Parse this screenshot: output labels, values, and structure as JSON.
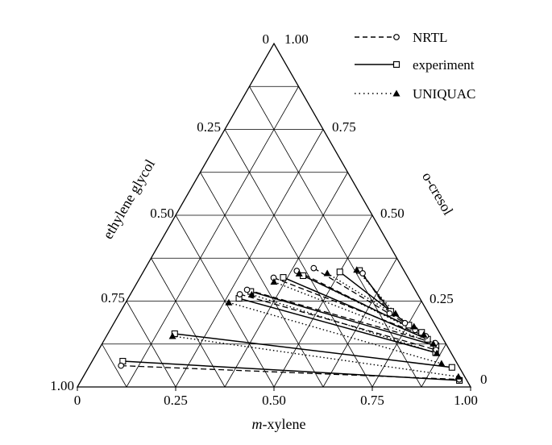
{
  "chart_data": {
    "type": "scatter",
    "subtype": "ternary",
    "axes": {
      "bottom": {
        "label_prefix": "m",
        "label_suffix": "-xylene",
        "ticks": [
          "0",
          "0.25",
          "0.50",
          "0.75",
          "1.00"
        ]
      },
      "left": {
        "label": "ethylene glycol",
        "ticks": [
          "1.00",
          "0.75",
          "0.50",
          "0.25",
          "0"
        ]
      },
      "right": {
        "label": "o-cresol",
        "ticks": [
          "0",
          "0.25",
          "0.50",
          "0.75",
          "1.00"
        ]
      }
    },
    "grid": true,
    "grid_step": 0.125,
    "legend": {
      "position": "top-right",
      "items": [
        {
          "name": "NRTL",
          "line": "dashed",
          "marker": "circle-open"
        },
        {
          "name": "experiment",
          "line": "solid",
          "marker": "square-open"
        },
        {
          "name": "UNIQUAC",
          "line": "dotted",
          "marker": "triangle-filled"
        }
      ]
    },
    "series": [
      {
        "name": "experiment",
        "tie_lines": [
          {
            "left": [
              0.078,
              0.075
            ],
            "right": [
              0.962,
              0.019
            ]
          },
          {
            "left": [
              0.17,
              0.155
            ],
            "right": [
              0.924,
              0.057
            ]
          },
          {
            "left": [
              0.282,
              0.258
            ],
            "right": [
              0.861,
              0.1
            ]
          },
          {
            "left": [
              0.302,
              0.278
            ],
            "right": [
              0.852,
              0.12
            ]
          },
          {
            "left": [
              0.364,
              0.319
            ],
            "right": [
              0.821,
              0.139
            ]
          },
          {
            "left": [
              0.412,
              0.324
            ],
            "right": [
              0.796,
              0.159
            ]
          },
          {
            "left": [
              0.5,
              0.335
            ],
            "right": [
              0.753,
              0.18
            ]
          },
          {
            "left": [
              0.548,
              0.339
            ],
            "right": [
              0.687,
              0.22
            ]
          }
        ]
      },
      {
        "name": "NRTL",
        "tie_lines": [
          {
            "left": [
              0.08,
              0.062
            ],
            "right": [
              0.96,
              0.022
            ]
          },
          {
            "left": [
              0.278,
              0.27
            ],
            "right": [
              0.858,
              0.108
            ]
          },
          {
            "left": [
              0.29,
              0.283
            ],
            "right": [
              0.846,
              0.128
            ]
          },
          {
            "left": [
              0.34,
              0.318
            ],
            "right": [
              0.812,
              0.148
            ]
          },
          {
            "left": [
              0.389,
              0.338
            ],
            "right": [
              0.776,
              0.166
            ]
          },
          {
            "left": [
              0.428,
              0.346
            ],
            "right": [
              0.74,
              0.186
            ]
          },
          {
            "left": [
              0.56,
              0.331
            ],
            "right": [
              0.687,
              0.214
            ]
          }
        ]
      },
      {
        "name": "UNIQUAC",
        "tie_lines": [
          {
            "left": [
              0.168,
              0.148
            ],
            "right": [
              0.954,
              0.03
            ]
          },
          {
            "left": [
              0.262,
              0.246
            ],
            "right": [
              0.892,
              0.068
            ]
          },
          {
            "left": [
              0.309,
              0.269
            ],
            "right": [
              0.865,
              0.098
            ]
          },
          {
            "left": [
              0.347,
              0.306
            ],
            "right": [
              0.842,
              0.126
            ]
          },
          {
            "left": [
              0.399,
              0.33
            ],
            "right": [
              0.805,
              0.152
            ]
          },
          {
            "left": [
              0.47,
              0.331
            ],
            "right": [
              0.768,
              0.176
            ]
          },
          {
            "left": [
              0.54,
              0.341
            ],
            "right": [
              0.702,
              0.214
            ]
          }
        ]
      }
    ]
  }
}
